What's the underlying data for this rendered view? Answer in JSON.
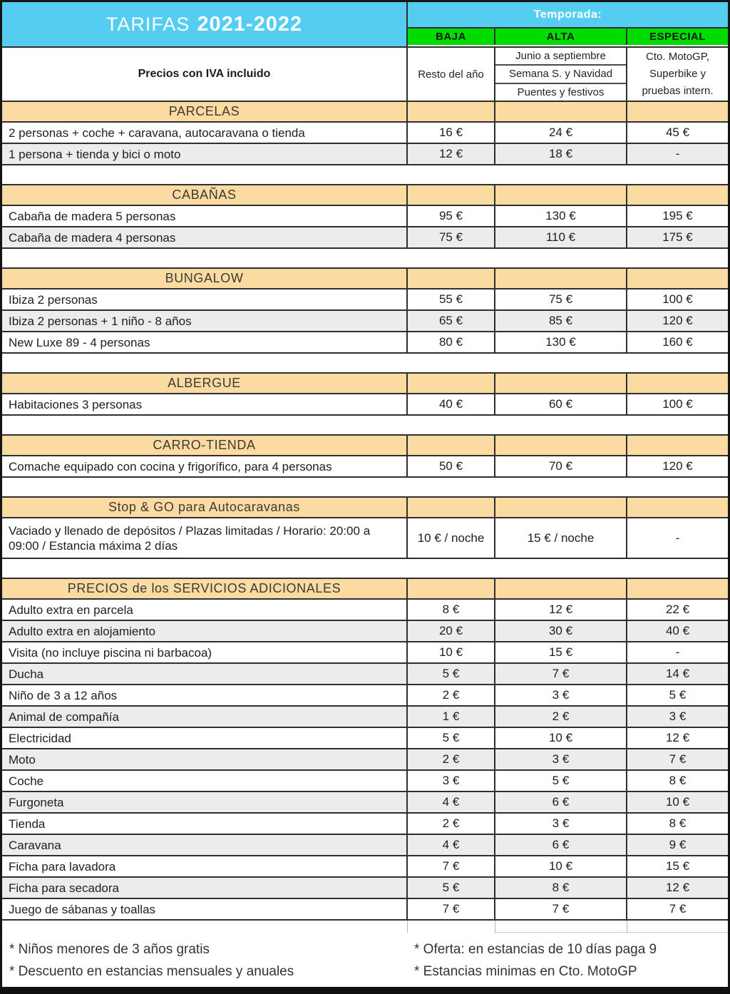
{
  "colors": {
    "header_blue": "#55CDF1",
    "season_green": "#00DB00",
    "section_orange": "#FBDBA1",
    "row_alt_gray": "#ECECEC"
  },
  "header": {
    "title_prefix": "TARIFAS",
    "title_years": "2021-2022",
    "temporada_label": "Temporada:",
    "season_columns": [
      "BAJA",
      "ALTA",
      "ESPECIAL"
    ],
    "iva_label": "Precios con IVA incluido",
    "baja_sub": "Resto del año",
    "alta_subs": [
      "Junio a septiembre",
      "Semana S. y Navidad",
      "Puentes y festivos"
    ],
    "especial_sub_lines": [
      "Cto. MotoGP,",
      "Superbike y",
      "pruebas intern."
    ]
  },
  "sections": [
    {
      "title": "PARCELAS",
      "spacer": true,
      "rows": [
        {
          "label": "2 personas + coche + caravana, autocaravana o tienda",
          "baja": "16 €",
          "alta": "24 €",
          "especial": "45 €"
        },
        {
          "label": "1 persona + tienda y bici o moto",
          "baja": "12 €",
          "alta": "18 €",
          "especial": "-"
        }
      ]
    },
    {
      "title": "CABAÑAS",
      "spacer": true,
      "rows": [
        {
          "label": "Cabaña de madera 5 personas",
          "baja": "95 €",
          "alta": "130 €",
          "especial": "195 €"
        },
        {
          "label": "Cabaña de madera 4 personas",
          "baja": "75 €",
          "alta": "110 €",
          "especial": "175 €"
        }
      ]
    },
    {
      "title": "BUNGALOW",
      "spacer": true,
      "rows": [
        {
          "label": "Ibiza 2 personas",
          "baja": "55 €",
          "alta": "75 €",
          "especial": "100 €"
        },
        {
          "label": "Ibiza 2 personas + 1 niño - 8 años",
          "baja": "65 €",
          "alta": "85 €",
          "especial": "120 €"
        },
        {
          "label": "New Luxe 89 - 4 personas",
          "baja": "80 €",
          "alta": "130 €",
          "especial": "160 €"
        }
      ]
    },
    {
      "title": "ALBERGUE",
      "spacer": true,
      "rows": [
        {
          "label": "Habitaciones 3 personas",
          "baja": "40 €",
          "alta": "60 €",
          "especial": "100 €"
        }
      ]
    },
    {
      "title": "CARRO-TIENDA",
      "spacer": true,
      "rows": [
        {
          "label": "Comache equipado con cocina y frigorífico, para 4 personas",
          "baja": "50 €",
          "alta": "70 €",
          "especial": "120 €"
        }
      ]
    },
    {
      "title": "Stop & GO para Autocaravanas",
      "spacer": true,
      "rows": [
        {
          "label": "Vaciado y llenado de depósitos  / Plazas limitadas / Horario: 20:00 a 09:00 / Estancia máxima 2 días",
          "baja": "10 € / noche",
          "alta": "15 € / noche",
          "especial": "-",
          "tall": true
        }
      ]
    },
    {
      "title": "PRECIOS de los SERVICIOS ADICIONALES",
      "spacer": false,
      "rows": [
        {
          "label": "Adulto extra en parcela",
          "baja": "8 €",
          "alta": "12 €",
          "especial": "22 €"
        },
        {
          "label": "Adulto extra en alojamiento",
          "baja": "20 €",
          "alta": "30 €",
          "especial": "40 €"
        },
        {
          "label": "Visita (no incluye piscina ni barbacoa)",
          "baja": "10 €",
          "alta": "15 €",
          "especial": "-"
        },
        {
          "label": "Ducha",
          "baja": "5 €",
          "alta": "7 €",
          "especial": "14 €"
        },
        {
          "label": "Niño de 3 a 12 años",
          "baja": "2 €",
          "alta": "3 €",
          "especial": "5 €"
        },
        {
          "label": "Animal de compañía",
          "baja": "1 €",
          "alta": "2 €",
          "especial": "3 €"
        },
        {
          "label": "Electricidad",
          "baja": "5 €",
          "alta": "10 €",
          "especial": "12 €"
        },
        {
          "label": "Moto",
          "baja": "2 €",
          "alta": "3 €",
          "especial": "7 €"
        },
        {
          "label": "Coche",
          "baja": "3 €",
          "alta": "5 €",
          "especial": "8 €"
        },
        {
          "label": "Furgoneta",
          "baja": "4 €",
          "alta": "6 €",
          "especial": "10 €"
        },
        {
          "label": "Tienda",
          "baja": "2 €",
          "alta": "3 €",
          "especial": "8 €"
        },
        {
          "label": "Caravana",
          "baja": "4 €",
          "alta": "6 €",
          "especial": "9 €"
        },
        {
          "label": "Ficha para lavadora",
          "baja": "7 €",
          "alta": "10 €",
          "especial": "15 €"
        },
        {
          "label": "Ficha para secadora",
          "baja": "5 €",
          "alta": "8 €",
          "especial": "12 €"
        },
        {
          "label": "Juego de sábanas y toallas",
          "baja": "7 €",
          "alta": "7 €",
          "especial": "7 €"
        }
      ]
    }
  ],
  "footnotes": {
    "left": [
      "* Niños menores de 3 años gratis",
      "* Descuento en estancias mensuales y anuales"
    ],
    "right": [
      "* Oferta: en estancias de 10 días paga 9",
      "* Estancias minimas en Cto. MotoGP"
    ]
  }
}
